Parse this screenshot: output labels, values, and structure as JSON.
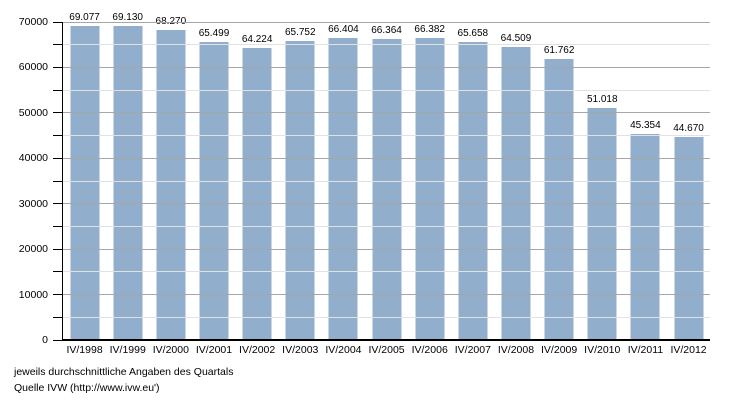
{
  "chart_data": {
    "type": "bar",
    "title": "",
    "categories": [
      "IV/1998",
      "IV/1999",
      "IV/2000",
      "IV/2001",
      "IV/2002",
      "IV/2003",
      "IV/2004",
      "IV/2005",
      "IV/2006",
      "IV/2007",
      "IV/2008",
      "IV/2009",
      "IV/2010",
      "IV/2011",
      "IV/2012"
    ],
    "values": [
      69077,
      69130,
      68270,
      65499,
      64224,
      65752,
      66404,
      66364,
      66382,
      65658,
      64509,
      61762,
      51018,
      45354,
      44670
    ],
    "value_labels": [
      "69.077",
      "69.130",
      "68.270",
      "65.499",
      "64.224",
      "65.752",
      "66.404",
      "66.364",
      "66.382",
      "65.658",
      "64.509",
      "61.762",
      "51.018",
      "45.354",
      "44.670"
    ],
    "xlabel": "",
    "ylabel": "",
    "ylim": [
      0,
      70000
    ],
    "y_major_step": 10000,
    "y_minor_step": 5000,
    "y_tick_labels": [
      "0",
      "10000",
      "20000",
      "30000",
      "40000",
      "50000",
      "60000",
      "70000"
    ],
    "grid": "on",
    "legend_position": "none",
    "colors": {
      "bar": "#92AECD",
      "grid_major": "#A6A6A6",
      "grid_minor": "#E2E2E2",
      "axis": "#000000",
      "text": "#000000"
    }
  },
  "footer": {
    "line1": "jeweils durchschnittliche Angaben des Quartals",
    "line2": "Quelle IVW (http://www.ivw.eu')"
  }
}
